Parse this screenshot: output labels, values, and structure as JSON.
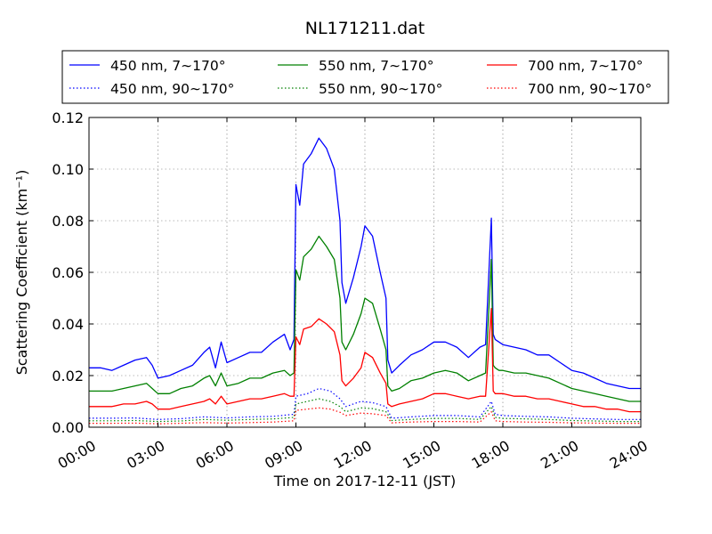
{
  "chart_data": {
    "type": "line",
    "title": "NL171211.dat",
    "xlabel": "Time on 2017-12-11 (JST)",
    "ylabel": "Scattering Coefficient (km⁻¹)",
    "xlim": [
      "00:00",
      "24:00"
    ],
    "ylim": [
      0.0,
      0.12
    ],
    "x_ticks": [
      "00:00",
      "03:00",
      "06:00",
      "09:00",
      "12:00",
      "15:00",
      "18:00",
      "21:00",
      "24:00"
    ],
    "y_ticks": [
      "0.00",
      "0.02",
      "0.04",
      "0.06",
      "0.08",
      "0.10",
      "0.12"
    ],
    "grid": true,
    "legend_position": "top",
    "series": [
      {
        "name": "450 nm, 7∼170°",
        "color": "#0000ff",
        "style": "solid",
        "x": [
          "00:00",
          "00:30",
          "01:00",
          "01:30",
          "02:00",
          "02:30",
          "02:45",
          "03:00",
          "03:30",
          "04:00",
          "04:30",
          "05:00",
          "05:15",
          "05:30",
          "05:45",
          "06:00",
          "06:30",
          "07:00",
          "07:30",
          "08:00",
          "08:30",
          "08:45",
          "08:55",
          "09:00",
          "09:10",
          "09:20",
          "09:40",
          "10:00",
          "10:20",
          "10:40",
          "10:55",
          "11:00",
          "11:10",
          "11:30",
          "11:50",
          "12:00",
          "12:20",
          "12:40",
          "12:55",
          "13:00",
          "13:10",
          "13:30",
          "14:00",
          "14:30",
          "15:00",
          "15:30",
          "16:00",
          "16:30",
          "17:00",
          "17:15",
          "17:30",
          "17:35",
          "17:40",
          "17:50",
          "18:00",
          "18:30",
          "19:00",
          "19:30",
          "20:00",
          "20:30",
          "21:00",
          "21:30",
          "22:00",
          "22:30",
          "23:00",
          "23:30",
          "24:00"
        ],
        "y": [
          0.023,
          0.023,
          0.022,
          0.024,
          0.026,
          0.027,
          0.024,
          0.019,
          0.02,
          0.022,
          0.024,
          0.029,
          0.031,
          0.023,
          0.033,
          0.025,
          0.027,
          0.029,
          0.029,
          0.033,
          0.036,
          0.03,
          0.034,
          0.094,
          0.086,
          0.102,
          0.106,
          0.112,
          0.108,
          0.1,
          0.08,
          0.056,
          0.048,
          0.058,
          0.07,
          0.078,
          0.074,
          0.06,
          0.05,
          0.026,
          0.021,
          0.024,
          0.028,
          0.03,
          0.033,
          0.033,
          0.031,
          0.027,
          0.031,
          0.032,
          0.081,
          0.036,
          0.034,
          0.033,
          0.032,
          0.031,
          0.03,
          0.028,
          0.028,
          0.025,
          0.022,
          0.021,
          0.019,
          0.017,
          0.016,
          0.015,
          0.015
        ]
      },
      {
        "name": "550 nm, 7∼170°",
        "color": "#008000",
        "style": "solid",
        "x": [
          "00:00",
          "00:30",
          "01:00",
          "01:30",
          "02:00",
          "02:30",
          "02:45",
          "03:00",
          "03:30",
          "04:00",
          "04:30",
          "05:00",
          "05:15",
          "05:30",
          "05:45",
          "06:00",
          "06:30",
          "07:00",
          "07:30",
          "08:00",
          "08:30",
          "08:45",
          "08:55",
          "09:00",
          "09:10",
          "09:20",
          "09:40",
          "10:00",
          "10:20",
          "10:40",
          "10:55",
          "11:00",
          "11:10",
          "11:30",
          "11:50",
          "12:00",
          "12:20",
          "12:40",
          "12:55",
          "13:00",
          "13:10",
          "13:30",
          "14:00",
          "14:30",
          "15:00",
          "15:30",
          "16:00",
          "16:30",
          "17:00",
          "17:15",
          "17:30",
          "17:35",
          "17:40",
          "17:50",
          "18:00",
          "18:30",
          "19:00",
          "19:30",
          "20:00",
          "20:30",
          "21:00",
          "21:30",
          "22:00",
          "22:30",
          "23:00",
          "23:30",
          "24:00"
        ],
        "y": [
          0.014,
          0.014,
          0.014,
          0.015,
          0.016,
          0.017,
          0.015,
          0.013,
          0.013,
          0.015,
          0.016,
          0.019,
          0.02,
          0.016,
          0.021,
          0.016,
          0.017,
          0.019,
          0.019,
          0.021,
          0.022,
          0.02,
          0.021,
          0.061,
          0.057,
          0.066,
          0.069,
          0.074,
          0.07,
          0.065,
          0.05,
          0.033,
          0.03,
          0.036,
          0.044,
          0.05,
          0.048,
          0.038,
          0.03,
          0.016,
          0.014,
          0.015,
          0.018,
          0.019,
          0.021,
          0.022,
          0.021,
          0.018,
          0.02,
          0.021,
          0.065,
          0.024,
          0.023,
          0.022,
          0.022,
          0.021,
          0.021,
          0.02,
          0.019,
          0.017,
          0.015,
          0.014,
          0.013,
          0.012,
          0.011,
          0.01,
          0.01
        ]
      },
      {
        "name": "700 nm, 7∼170°",
        "color": "#ff0000",
        "style": "solid",
        "x": [
          "00:00",
          "00:30",
          "01:00",
          "01:30",
          "02:00",
          "02:30",
          "02:45",
          "03:00",
          "03:30",
          "04:00",
          "04:30",
          "05:00",
          "05:15",
          "05:30",
          "05:45",
          "06:00",
          "06:30",
          "07:00",
          "07:30",
          "08:00",
          "08:30",
          "08:45",
          "08:55",
          "09:00",
          "09:10",
          "09:20",
          "09:40",
          "10:00",
          "10:20",
          "10:40",
          "10:55",
          "11:00",
          "11:10",
          "11:30",
          "11:50",
          "12:00",
          "12:20",
          "12:40",
          "12:55",
          "13:00",
          "13:10",
          "13:30",
          "14:00",
          "14:30",
          "15:00",
          "15:30",
          "16:00",
          "16:30",
          "17:00",
          "17:15",
          "17:30",
          "17:35",
          "17:40",
          "17:50",
          "18:00",
          "18:30",
          "19:00",
          "19:30",
          "20:00",
          "20:30",
          "21:00",
          "21:30",
          "22:00",
          "22:30",
          "23:00",
          "23:30",
          "24:00"
        ],
        "y": [
          0.008,
          0.008,
          0.008,
          0.009,
          0.009,
          0.01,
          0.009,
          0.007,
          0.007,
          0.008,
          0.009,
          0.01,
          0.011,
          0.009,
          0.012,
          0.009,
          0.01,
          0.011,
          0.011,
          0.012,
          0.013,
          0.012,
          0.012,
          0.035,
          0.032,
          0.038,
          0.039,
          0.042,
          0.04,
          0.037,
          0.028,
          0.018,
          0.016,
          0.019,
          0.023,
          0.029,
          0.027,
          0.021,
          0.017,
          0.009,
          0.008,
          0.009,
          0.01,
          0.011,
          0.013,
          0.013,
          0.012,
          0.011,
          0.012,
          0.012,
          0.046,
          0.014,
          0.013,
          0.013,
          0.013,
          0.012,
          0.012,
          0.011,
          0.011,
          0.01,
          0.009,
          0.008,
          0.008,
          0.007,
          0.007,
          0.006,
          0.006
        ]
      },
      {
        "name": "450 nm, 90∼170°",
        "color": "#0000ff",
        "style": "dotted",
        "x": [
          "00:00",
          "01:00",
          "02:00",
          "03:00",
          "04:00",
          "05:00",
          "06:00",
          "07:00",
          "08:00",
          "08:55",
          "09:00",
          "09:30",
          "10:00",
          "10:30",
          "10:55",
          "11:10",
          "11:50",
          "12:20",
          "12:55",
          "13:10",
          "14:00",
          "15:00",
          "16:00",
          "17:00",
          "17:30",
          "17:40",
          "18:00",
          "19:00",
          "20:00",
          "21:00",
          "22:00",
          "23:00",
          "24:00"
        ],
        "y": [
          0.0035,
          0.0035,
          0.0036,
          0.003,
          0.0033,
          0.004,
          0.0036,
          0.004,
          0.0042,
          0.005,
          0.012,
          0.013,
          0.015,
          0.014,
          0.011,
          0.008,
          0.01,
          0.0095,
          0.008,
          0.0035,
          0.004,
          0.0045,
          0.0045,
          0.004,
          0.01,
          0.005,
          0.0045,
          0.0042,
          0.004,
          0.0035,
          0.0032,
          0.003,
          0.003
        ]
      },
      {
        "name": "550 nm, 90∼170°",
        "color": "#008000",
        "style": "dotted",
        "x": [
          "00:00",
          "01:00",
          "02:00",
          "03:00",
          "04:00",
          "05:00",
          "06:00",
          "07:00",
          "08:00",
          "08:55",
          "09:00",
          "09:30",
          "10:00",
          "10:30",
          "10:55",
          "11:10",
          "11:50",
          "12:20",
          "12:55",
          "13:10",
          "14:00",
          "15:00",
          "16:00",
          "17:00",
          "17:30",
          "17:40",
          "18:00",
          "19:00",
          "20:00",
          "21:00",
          "22:00",
          "23:00",
          "24:00"
        ],
        "y": [
          0.0025,
          0.0025,
          0.0026,
          0.0022,
          0.0024,
          0.003,
          0.0027,
          0.003,
          0.0032,
          0.0038,
          0.009,
          0.01,
          0.011,
          0.01,
          0.008,
          0.006,
          0.0075,
          0.0072,
          0.006,
          0.0026,
          0.003,
          0.0034,
          0.0034,
          0.003,
          0.008,
          0.0038,
          0.0034,
          0.0032,
          0.003,
          0.0026,
          0.0024,
          0.0022,
          0.0022
        ]
      },
      {
        "name": "700 nm, 90∼170°",
        "color": "#ff0000",
        "style": "dotted",
        "x": [
          "00:00",
          "01:00",
          "02:00",
          "03:00",
          "04:00",
          "05:00",
          "06:00",
          "07:00",
          "08:00",
          "08:55",
          "09:00",
          "09:30",
          "10:00",
          "10:30",
          "10:55",
          "11:10",
          "11:50",
          "12:20",
          "12:55",
          "13:10",
          "14:00",
          "15:00",
          "16:00",
          "17:00",
          "17:30",
          "17:40",
          "18:00",
          "19:00",
          "20:00",
          "21:00",
          "22:00",
          "23:00",
          "24:00"
        ],
        "y": [
          0.0015,
          0.0015,
          0.0016,
          0.0013,
          0.0015,
          0.0018,
          0.0016,
          0.0018,
          0.002,
          0.0025,
          0.0065,
          0.007,
          0.0075,
          0.007,
          0.0058,
          0.0045,
          0.0055,
          0.0052,
          0.0045,
          0.0017,
          0.002,
          0.0022,
          0.0022,
          0.002,
          0.006,
          0.0025,
          0.0022,
          0.002,
          0.0019,
          0.0017,
          0.0016,
          0.0015,
          0.0015
        ]
      }
    ]
  }
}
